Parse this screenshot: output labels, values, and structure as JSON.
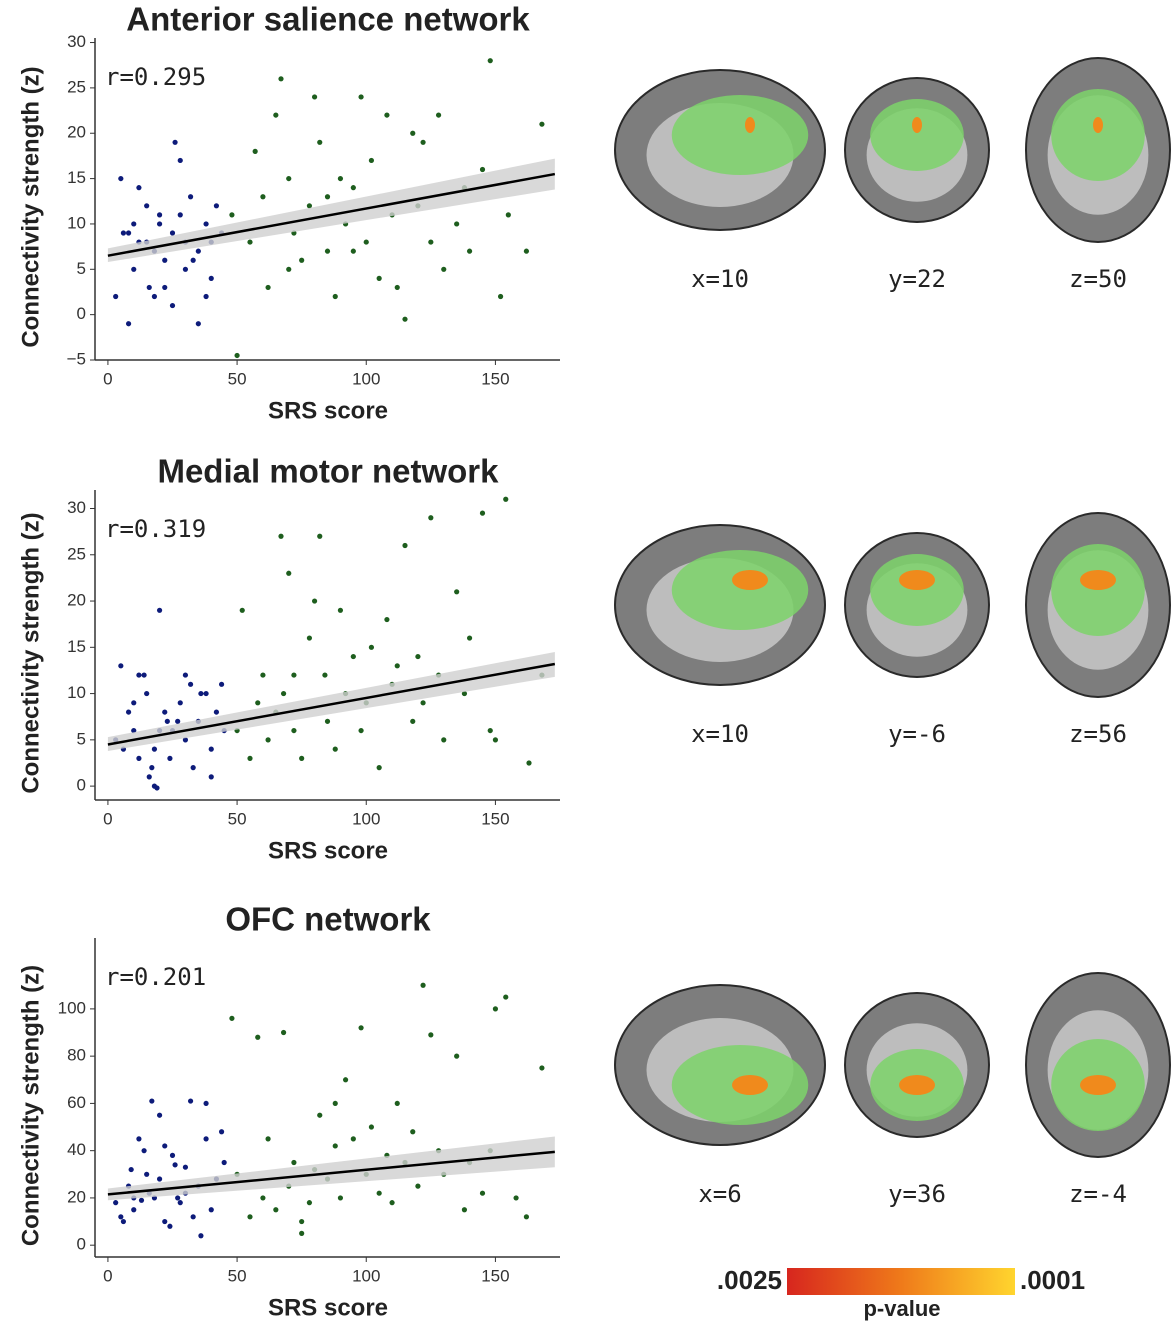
{
  "chart_data": [
    {
      "type": "scatter",
      "title": "Anterior salience network",
      "x_label": "SRS score",
      "y_label": "Connectivity strength (z)",
      "annotation": "r=0.295",
      "xlim": [
        -5,
        175
      ],
      "xticks": [
        0,
        50,
        100,
        150
      ],
      "ylim": [
        -5,
        30.5
      ],
      "yticks": [
        {
          "value": -5,
          "label": "−5"
        },
        0,
        5,
        10,
        15,
        20,
        25,
        30
      ],
      "series": [
        {
          "color": "#0d1b7a",
          "x": [
            5,
            8,
            10,
            12,
            15,
            18,
            20,
            22,
            25,
            28,
            30,
            32,
            35,
            38,
            40,
            42,
            3,
            8,
            18,
            35,
            22,
            28,
            15,
            12,
            26,
            30,
            44,
            20,
            10,
            38,
            33,
            25,
            16,
            40,
            6
          ],
          "values": [
            15,
            9,
            10,
            8,
            12,
            7,
            10,
            6,
            9,
            17,
            5,
            13,
            7,
            10,
            4,
            12,
            2,
            -1,
            2,
            -1,
            3,
            11,
            8,
            14,
            19,
            8,
            9,
            11,
            5,
            2,
            6,
            1,
            3,
            8,
            9
          ]
        },
        {
          "color": "#1e5e1e",
          "x": [
            50,
            48,
            55,
            60,
            62,
            65,
            67,
            70,
            72,
            75,
            78,
            80,
            82,
            85,
            88,
            90,
            92,
            95,
            98,
            100,
            102,
            105,
            108,
            110,
            112,
            115,
            118,
            120,
            122,
            125,
            128,
            130,
            135,
            138,
            140,
            145,
            148,
            152,
            155,
            162,
            168,
            57,
            85,
            95,
            70
          ],
          "values": [
            -4.5,
            11,
            8,
            13,
            3,
            22,
            26,
            15,
            9,
            6,
            12,
            24,
            19,
            7,
            2,
            15,
            10,
            14,
            24,
            8,
            17,
            4,
            22,
            11,
            3,
            -0.5,
            20,
            12,
            19,
            8,
            22,
            5,
            10,
            14,
            7,
            16,
            28,
            2,
            11,
            7,
            21,
            18,
            13,
            7,
            5
          ]
        }
      ],
      "fit": {
        "color": "#000000",
        "band_color": "#cfcfcf",
        "x": [
          0,
          173
        ],
        "values": [
          6.5,
          15.5
        ],
        "lower": [
          5.8,
          13.8
        ],
        "upper": [
          7.3,
          17.2
        ]
      }
    },
    {
      "type": "scatter",
      "title": "Medial motor network",
      "x_label": "SRS score",
      "y_label": "Connectivity strength (z)",
      "annotation": "r=0.319",
      "xlim": [
        -5,
        175
      ],
      "xticks": [
        0,
        50,
        100,
        150
      ],
      "ylim": [
        -1.5,
        32
      ],
      "yticks": [
        0,
        5,
        10,
        15,
        20,
        25,
        30
      ],
      "series": [
        {
          "color": "#0d1b7a",
          "x": [
            3,
            5,
            8,
            10,
            12,
            15,
            17,
            18,
            20,
            22,
            25,
            28,
            30,
            32,
            35,
            38,
            40,
            42,
            45,
            14,
            16,
            18,
            24,
            27,
            33,
            36,
            6,
            10,
            20,
            44,
            19,
            30,
            12,
            40,
            23
          ],
          "values": [
            5,
            13,
            8,
            6,
            12,
            10,
            2,
            0,
            19,
            8,
            6,
            9,
            5,
            11,
            7,
            10,
            4,
            8,
            6,
            12,
            1,
            4,
            3,
            7,
            2,
            10,
            4,
            9,
            6,
            11,
            -0.2,
            12,
            3,
            1,
            7
          ]
        },
        {
          "color": "#1e5e1e",
          "x": [
            50,
            52,
            55,
            58,
            60,
            62,
            65,
            67,
            68,
            70,
            72,
            75,
            78,
            80,
            82,
            84,
            85,
            88,
            90,
            92,
            95,
            98,
            100,
            102,
            105,
            108,
            110,
            112,
            115,
            118,
            120,
            122,
            125,
            128,
            130,
            135,
            138,
            140,
            145,
            148,
            150,
            154,
            163,
            168,
            72
          ],
          "values": [
            6,
            19,
            3,
            9,
            12,
            5,
            8,
            27,
            10,
            23,
            6,
            3,
            16,
            20,
            27,
            12,
            7,
            4,
            19,
            10,
            14,
            6,
            9,
            15,
            2,
            18,
            11,
            13,
            26,
            7,
            14,
            9,
            29,
            12,
            5,
            21,
            10,
            16,
            29.5,
            6,
            5,
            31,
            2.5,
            12,
            12
          ]
        }
      ],
      "fit": {
        "color": "#000000",
        "band_color": "#cfcfcf",
        "x": [
          0,
          173
        ],
        "values": [
          4.5,
          13.2
        ],
        "lower": [
          3.8,
          11.8
        ],
        "upper": [
          5.3,
          14.5
        ]
      }
    },
    {
      "type": "scatter",
      "title": "OFC network",
      "x_label": "SRS score",
      "y_label": "Connectivity strength (z)",
      "annotation": "r=0.201",
      "xlim": [
        -5,
        175
      ],
      "xticks": [
        0,
        50,
        100,
        150
      ],
      "ylim": [
        -5,
        130
      ],
      "yticks": [
        0,
        20,
        40,
        60,
        80,
        100
      ],
      "series": [
        {
          "color": "#0d1b7a",
          "x": [
            3,
            5,
            8,
            10,
            12,
            15,
            17,
            18,
            20,
            22,
            25,
            28,
            30,
            32,
            35,
            38,
            40,
            42,
            44,
            45,
            14,
            16,
            24,
            27,
            33,
            36,
            6,
            10,
            20,
            13,
            26,
            30,
            38,
            9,
            22
          ],
          "values": [
            18,
            12,
            25,
            15,
            45,
            30,
            61,
            20,
            55,
            10,
            38,
            18,
            33,
            61,
            25,
            45,
            15,
            28,
            48,
            35,
            40,
            22,
            8,
            20,
            12,
            4,
            10,
            20,
            28,
            19,
            34,
            22,
            60,
            32,
            42
          ]
        },
        {
          "color": "#1e5e1e",
          "x": [
            48,
            50,
            55,
            58,
            60,
            62,
            65,
            68,
            70,
            72,
            75,
            78,
            80,
            82,
            85,
            88,
            90,
            92,
            95,
            98,
            100,
            102,
            105,
            108,
            110,
            112,
            115,
            118,
            120,
            122,
            125,
            128,
            130,
            135,
            138,
            140,
            145,
            148,
            150,
            154,
            158,
            162,
            168,
            75,
            88
          ],
          "values": [
            96,
            30,
            12,
            88,
            20,
            45,
            15,
            90,
            25,
            35,
            10,
            18,
            32,
            55,
            28,
            42,
            20,
            70,
            45,
            92,
            30,
            50,
            22,
            38,
            18,
            60,
            35,
            48,
            25,
            110,
            89,
            40,
            30,
            80,
            15,
            35,
            22,
            40,
            100,
            105,
            20,
            12,
            75,
            5,
            60
          ]
        }
      ],
      "fit": {
        "color": "#000000",
        "band_color": "#cfcfcf",
        "x": [
          0,
          173
        ],
        "values": [
          21.5,
          39.5
        ],
        "lower": [
          19,
          33
        ],
        "upper": [
          24,
          46
        ]
      }
    }
  ],
  "brains": [
    {
      "labels": [
        "x=10",
        "y=22",
        "z=50"
      ]
    },
    {
      "labels": [
        "x=10",
        "y=-6",
        "z=56"
      ]
    },
    {
      "labels": [
        "x=6",
        "y=36",
        "z=-4"
      ]
    }
  ],
  "colorbar": {
    "low": ".0025",
    "high": ".0001",
    "label": "p-value"
  }
}
